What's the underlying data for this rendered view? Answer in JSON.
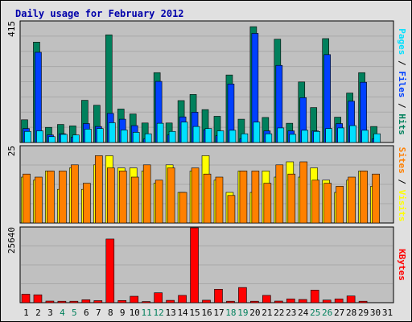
{
  "title": "Daily usage for February 2012",
  "colors": {
    "hits": "#00805c",
    "files": "#0040ff",
    "pages": "#00e0ff",
    "visits": "#ffff00",
    "sites": "#ff8000",
    "kbytes": "#ff0000",
    "weekday_label": "#000000",
    "weekend_label": "#00805c"
  },
  "side_labels": {
    "pages": "Pages",
    "files": "Files",
    "hits": "Hits",
    "visits": "Visits",
    "sites": "Sites",
    "kbytes": "KBytes",
    "separator": " / "
  },
  "chart_data": [
    {
      "type": "bar",
      "panel": "hits-files-pages",
      "categories": [
        "1",
        "2",
        "3",
        "4",
        "5",
        "6",
        "7",
        "8",
        "9",
        "10",
        "11",
        "12",
        "13",
        "14",
        "15",
        "16",
        "17",
        "18",
        "19",
        "20",
        "21",
        "22",
        "23",
        "24",
        "25",
        "26",
        "27",
        "28",
        "29",
        "30",
        "31"
      ],
      "weekend_days": [
        "4",
        "5",
        "11",
        "12",
        "18",
        "19",
        "25",
        "26"
      ],
      "ylim": [
        0,
        415
      ],
      "ymax_label": "415",
      "series": [
        {
          "name": "Hits",
          "values": [
            78,
            345,
            52,
            62,
            57,
            145,
            128,
            370,
            115,
            98,
            67,
            240,
            67,
            144,
            165,
            113,
            90,
            232,
            80,
            398,
            86,
            355,
            66,
            208,
            120,
            357,
            87,
            170,
            240,
            55,
            0
          ]
        },
        {
          "name": "Files",
          "values": [
            48,
            310,
            26,
            30,
            18,
            65,
            55,
            100,
            80,
            58,
            12,
            210,
            26,
            88,
            104,
            44,
            23,
            201,
            13,
            375,
            40,
            265,
            40,
            154,
            40,
            302,
            65,
            142,
            207,
            13,
            0
          ]
        },
        {
          "name": "Pages",
          "values": [
            38,
            40,
            20,
            28,
            26,
            46,
            48,
            68,
            43,
            35,
            30,
            66,
            38,
            70,
            55,
            48,
            40,
            42,
            30,
            70,
            30,
            50,
            28,
            42,
            38,
            48,
            50,
            58,
            42,
            30,
            0
          ]
        }
      ]
    },
    {
      "type": "bar",
      "panel": "visits-sites",
      "categories": [
        "1",
        "2",
        "3",
        "4",
        "5",
        "6",
        "7",
        "8",
        "9",
        "10",
        "11",
        "12",
        "13",
        "14",
        "15",
        "16",
        "17",
        "18",
        "19",
        "20",
        "21",
        "22",
        "23",
        "24",
        "25",
        "26",
        "27",
        "28",
        "29",
        "30",
        "31"
      ],
      "ylim": [
        0,
        25
      ],
      "ymax_label": "25",
      "series": [
        {
          "name": "Visits",
          "values": [
            15,
            14,
            17,
            11,
            18,
            11,
            19,
            22,
            18,
            18,
            17,
            13,
            19,
            10,
            17,
            22,
            14,
            10,
            17,
            10,
            17,
            15,
            20,
            15,
            18,
            14,
            10,
            14,
            17,
            12,
            0
          ]
        },
        {
          "name": "Sites",
          "values": [
            16,
            15,
            17,
            17,
            19,
            13,
            22,
            18,
            17,
            15,
            19,
            14,
            18,
            10,
            18,
            16,
            15,
            9,
            17,
            17,
            13,
            19,
            16,
            20,
            14,
            13,
            12,
            15,
            17,
            16,
            0
          ]
        }
      ]
    },
    {
      "type": "bar",
      "panel": "kbytes",
      "categories": [
        "1",
        "2",
        "3",
        "4",
        "5",
        "6",
        "7",
        "8",
        "9",
        "10",
        "11",
        "12",
        "13",
        "14",
        "15",
        "16",
        "17",
        "18",
        "19",
        "20",
        "21",
        "22",
        "23",
        "24",
        "25",
        "26",
        "27",
        "28",
        "29",
        "30",
        "31"
      ],
      "ylim": [
        0,
        25640
      ],
      "ymax_label": "25640",
      "series": [
        {
          "name": "KBytes",
          "values": [
            2900,
            2700,
            550,
            500,
            500,
            1000,
            700,
            21800,
            750,
            2200,
            400,
            3400,
            800,
            2500,
            25640,
            850,
            4600,
            500,
            5200,
            500,
            2500,
            550,
            1300,
            1100,
            4300,
            900,
            1300,
            2300,
            500,
            0,
            0
          ]
        }
      ]
    }
  ]
}
